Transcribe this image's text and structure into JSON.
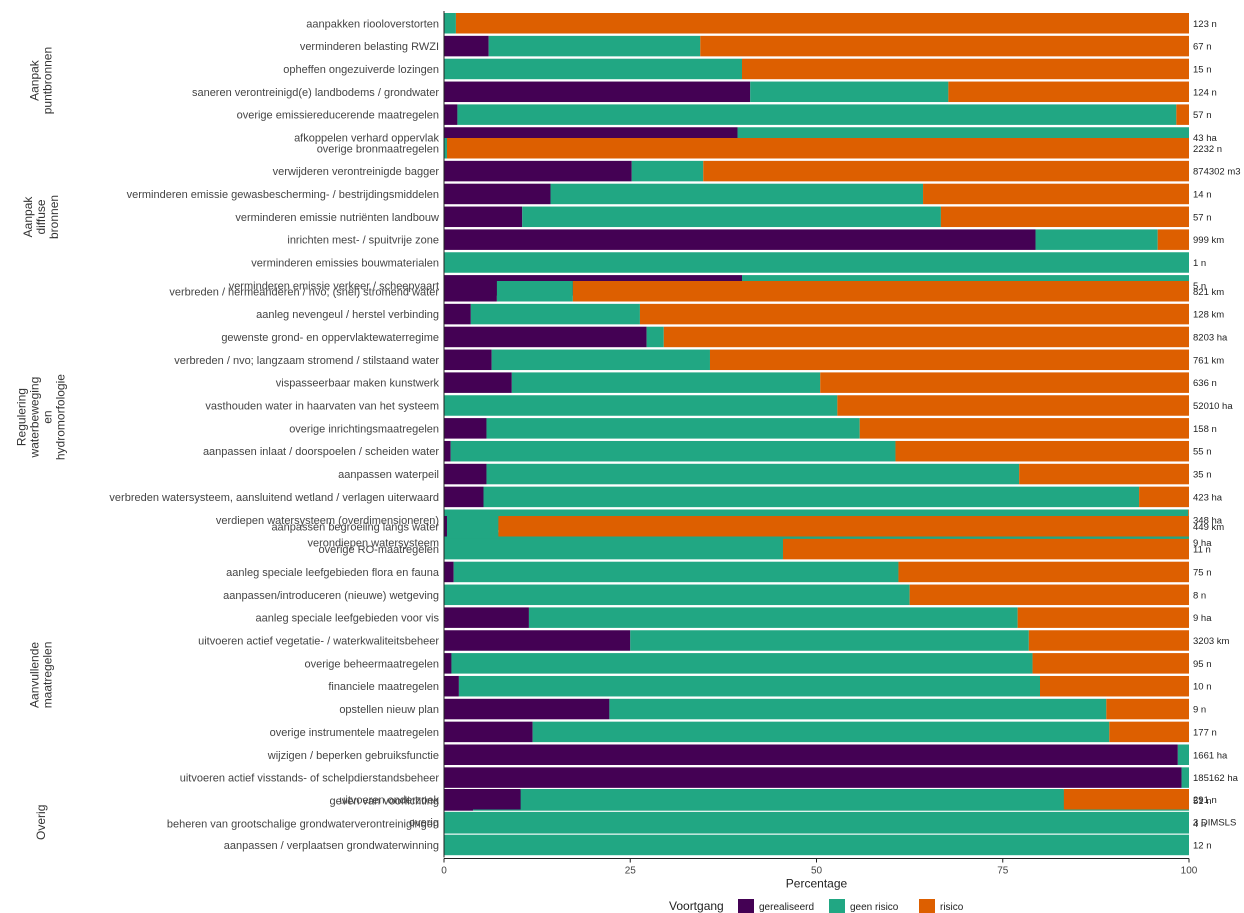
{
  "chart_data": {
    "type": "bar",
    "orientation": "horizontal",
    "stacked": true,
    "xlabel": "Percentage",
    "xlim": [
      0,
      100
    ],
    "xticks": [
      0,
      25,
      50,
      75,
      100
    ],
    "legend": {
      "title": "Voortgang",
      "position": "bottom",
      "items": [
        {
          "name": "gerealiseerd",
          "color": "#440154"
        },
        {
          "name": "geen risico",
          "color": "#21A783"
        },
        {
          "name": "risico",
          "color": "#DD5F00"
        }
      ]
    },
    "groups": [
      {
        "label_lines": [
          "Aanpak",
          "puntbronnen"
        ],
        "bars": [
          {
            "label": "aanpakken riooloverstorten",
            "amount": "123 n",
            "gerealiseerd": 0,
            "geen_risico": 1.6,
            "risico": 98.4
          },
          {
            "label": "verminderen belasting RWZI",
            "amount": "67 n",
            "gerealiseerd": 6.0,
            "geen_risico": 28.4,
            "risico": 65.6
          },
          {
            "label": "opheffen ongezuiverde lozingen",
            "amount": "15 n",
            "gerealiseerd": 0,
            "geen_risico": 40.0,
            "risico": 60.0
          },
          {
            "label": "saneren verontreinigd(e) landbodems / grondwater",
            "amount": "124 n",
            "gerealiseerd": 41.1,
            "geen_risico": 26.6,
            "risico": 32.3
          },
          {
            "label": "overige emissiereducerende maatregelen",
            "amount": "57 n",
            "gerealiseerd": 1.8,
            "geen_risico": 96.5,
            "risico": 1.7
          },
          {
            "label": "afkoppelen verhard oppervlak",
            "amount": "43 ha",
            "gerealiseerd": 39.4,
            "geen_risico": 60.6,
            "risico": 0
          }
        ]
      },
      {
        "label_lines": [
          "Aanpak",
          "diffuse",
          "bronnen"
        ],
        "bars": [
          {
            "label": "overige bronmaatregelen",
            "amount": "2232 n",
            "gerealiseerd": 0,
            "geen_risico": 0.4,
            "risico": 99.6
          },
          {
            "label": "verwijderen verontreinigde bagger",
            "amount": "874302 m3",
            "gerealiseerd": 25.2,
            "geen_risico": 9.6,
            "risico": 65.2
          },
          {
            "label": "verminderen emissie gewasbescherming- / bestrijdingsmiddelen",
            "amount": "14 n",
            "gerealiseerd": 14.3,
            "geen_risico": 50.0,
            "risico": 35.7
          },
          {
            "label": "verminderen emissie nutriënten landbouw",
            "amount": "57 n",
            "gerealiseerd": 10.5,
            "geen_risico": 56.2,
            "risico": 33.3
          },
          {
            "label": "inrichten mest- / spuitvrije zone",
            "amount": "999 km",
            "gerealiseerd": 79.4,
            "geen_risico": 16.4,
            "risico": 4.2
          },
          {
            "label": "verminderen emissies bouwmaterialen",
            "amount": "1 n",
            "gerealiseerd": 0,
            "geen_risico": 100,
            "risico": 0
          },
          {
            "label": "verminderen emissie verkeer / scheepvaart",
            "amount": "5 n",
            "gerealiseerd": 40.0,
            "geen_risico": 60.0,
            "risico": 0
          }
        ]
      },
      {
        "label_lines": [
          "Regulering",
          "waterbeweging",
          "en",
          "hydromorfologie"
        ],
        "bars": [
          {
            "label": "verbreden / hermeanderen / nvo; (snel) stromend water",
            "amount": "821 km",
            "gerealiseerd": 7.1,
            "geen_risico": 10.2,
            "risico": 82.7
          },
          {
            "label": "aanleg nevengeul / herstel verbinding",
            "amount": "128 km",
            "gerealiseerd": 3.6,
            "geen_risico": 22.7,
            "risico": 73.7
          },
          {
            "label": "gewenste grond- en oppervlaktewaterregime",
            "amount": "8203 ha",
            "gerealiseerd": 27.2,
            "geen_risico": 2.3,
            "risico": 70.5
          },
          {
            "label": "verbreden / nvo; langzaam stromend / stilstaand water",
            "amount": "761 km",
            "gerealiseerd": 6.4,
            "geen_risico": 29.3,
            "risico": 64.3
          },
          {
            "label": "vispasseerbaar maken kunstwerk",
            "amount": "636 n",
            "gerealiseerd": 9.1,
            "geen_risico": 41.4,
            "risico": 49.5
          },
          {
            "label": "vasthouden water in haarvaten van het systeem",
            "amount": "52010 ha",
            "gerealiseerd": 0,
            "geen_risico": 52.8,
            "risico": 47.2
          },
          {
            "label": "overige inrichtingsmaatregelen",
            "amount": "158 n",
            "gerealiseerd": 5.7,
            "geen_risico": 50.1,
            "risico": 44.2
          },
          {
            "label": "aanpassen inlaat / doorspoelen / scheiden water",
            "amount": "55 n",
            "gerealiseerd": 0.9,
            "geen_risico": 59.7,
            "risico": 39.4
          },
          {
            "label": "aanpassen waterpeil",
            "amount": "35 n",
            "gerealiseerd": 5.7,
            "geen_risico": 71.5,
            "risico": 22.8
          },
          {
            "label": "verbreden watersysteem, aansluitend wetland / verlagen uiterwaard",
            "amount": "423 ha",
            "gerealiseerd": 5.3,
            "geen_risico": 88.0,
            "risico": 6.7
          },
          {
            "label": "verdiepen watersysteem  (overdimensioneren)",
            "amount": "348 ha",
            "gerealiseerd": 0,
            "geen_risico": 99.9,
            "risico": 0.1
          },
          {
            "label": "verondiepen watersysteem",
            "amount": "9 ha",
            "gerealiseerd": 0,
            "geen_risico": 100,
            "risico": 0
          }
        ]
      },
      {
        "label_lines": [
          "Aanvullende",
          "maatregelen"
        ],
        "bars": [
          {
            "label": "aanpassen begroeiing langs water",
            "amount": "449 km",
            "gerealiseerd": 0.4,
            "geen_risico": 6.9,
            "risico": 92.7
          },
          {
            "label": "overige RO-maatregelen",
            "amount": "11 n",
            "gerealiseerd": 0,
            "geen_risico": 45.5,
            "risico": 54.5
          },
          {
            "label": "aanleg speciale leefgebieden flora en fauna",
            "amount": "75 n",
            "gerealiseerd": 1.3,
            "geen_risico": 59.7,
            "risico": 39.0
          },
          {
            "label": "aanpassen/introduceren (nieuwe) wetgeving",
            "amount": "8 n",
            "gerealiseerd": 0,
            "geen_risico": 62.5,
            "risico": 37.5
          },
          {
            "label": "aanleg speciale leefgebieden voor vis",
            "amount": "9 ha",
            "gerealiseerd": 11.4,
            "geen_risico": 65.6,
            "risico": 23.0
          },
          {
            "label": "uitvoeren actief vegetatie- / waterkwaliteitsbeheer",
            "amount": "3203 km",
            "gerealiseerd": 25.0,
            "geen_risico": 53.5,
            "risico": 21.5
          },
          {
            "label": "overige beheermaatregelen",
            "amount": "95 n",
            "gerealiseerd": 1.0,
            "geen_risico": 78.0,
            "risico": 21.0
          },
          {
            "label": "financiele maatregelen",
            "amount": "10 n",
            "gerealiseerd": 2.0,
            "geen_risico": 78.0,
            "risico": 20.0
          },
          {
            "label": "opstellen nieuw plan",
            "amount": "9 n",
            "gerealiseerd": 22.2,
            "geen_risico": 66.7,
            "risico": 11.1
          },
          {
            "label": "overige instrumentele maatregelen",
            "amount": "177 n",
            "gerealiseerd": 11.9,
            "geen_risico": 77.4,
            "risico": 10.7
          },
          {
            "label": "wijzigen / beperken gebruiksfunctie",
            "amount": "1661 ha",
            "gerealiseerd": 98.5,
            "geen_risico": 1.5,
            "risico": 0
          },
          {
            "label": "uitvoeren actief visstands- of schelpdierstandsbeheer",
            "amount": "185162 ha",
            "gerealiseerd": 99.0,
            "geen_risico": 1.0,
            "risico": 0
          },
          {
            "label": "geven van voorlichting",
            "amount": "51 n",
            "gerealiseerd": 3.9,
            "geen_risico": 96.1,
            "risico": 0
          },
          {
            "label": "beheren van grootschalige grondwaterverontreinigingen",
            "amount": "4 n",
            "gerealiseerd": 0,
            "geen_risico": 100,
            "risico": 0
          }
        ]
      },
      {
        "label_lines": [
          "Overig"
        ],
        "bars": [
          {
            "label": "uitvoeren onderzoek",
            "amount": "291 n",
            "gerealiseerd": 10.3,
            "geen_risico": 72.9,
            "risico": 16.8
          },
          {
            "label": "overig",
            "amount": "3 DIMSLS",
            "gerealiseerd": 0,
            "geen_risico": 100,
            "risico": 0
          },
          {
            "label": "aanpassen / verplaatsen grondwaterwinning",
            "amount": "12 n",
            "gerealiseerd": 0,
            "geen_risico": 100,
            "risico": 0
          }
        ]
      }
    ]
  }
}
